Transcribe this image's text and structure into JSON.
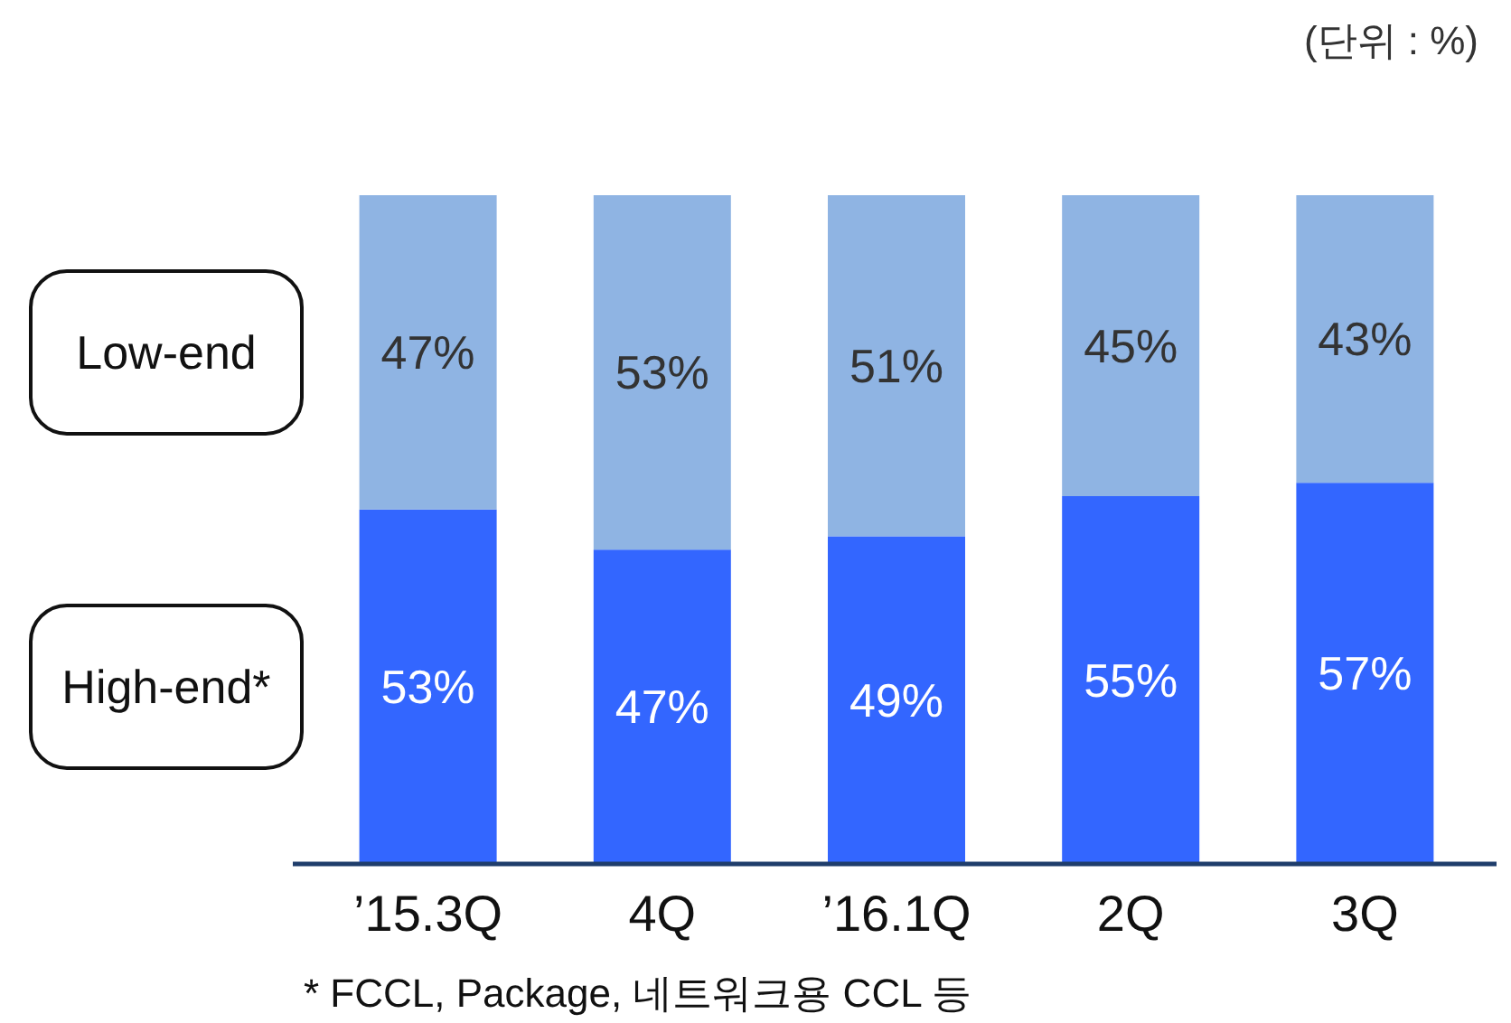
{
  "chart_data": {
    "type": "bar",
    "stacked": true,
    "legend": "left",
    "categories": [
      "’15.3Q",
      "4Q",
      "’16.1Q",
      "2Q",
      "3Q"
    ],
    "series": [
      {
        "name": "High-end*",
        "color": "#3366ff",
        "values": [
          53,
          47,
          49,
          55,
          57
        ],
        "value_labels": [
          "53%",
          "47%",
          "49%",
          "55%",
          "57%"
        ]
      },
      {
        "name": "Low-end",
        "color": "#8fb4e3",
        "values": [
          47,
          53,
          51,
          45,
          43
        ],
        "value_labels": [
          "47%",
          "53%",
          "51%",
          "45%",
          "43%"
        ]
      }
    ],
    "annotations": [
      "(단위 : %)",
      "* FCCL,  Package, 네트워크용 CCL 등"
    ]
  }
}
